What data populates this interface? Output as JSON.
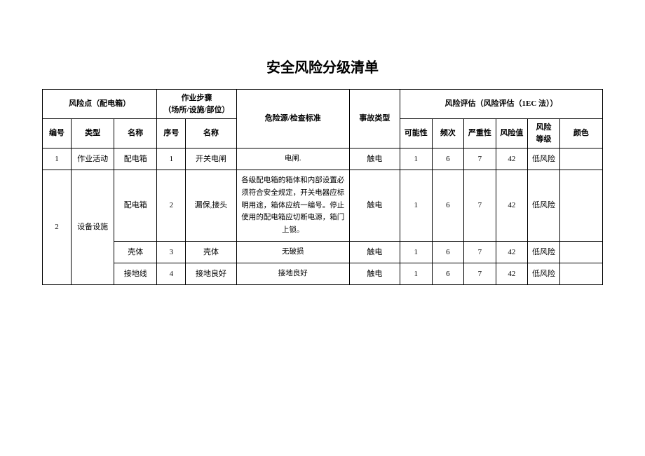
{
  "title": "安全风险分级清单",
  "header_group": {
    "risk_point": "风险点（配电箱）",
    "step_group": "作业步骤\n（场所/设施/部位）",
    "hazard": "危险源/检查标准",
    "accident": "事故类型",
    "assessment": "风险评估（风险评估（1EC 法））"
  },
  "sub_headers": {
    "rp_no": "编号",
    "rp_type": "类型",
    "rp_name": "名称",
    "step_no": "序号",
    "step_name": "名称",
    "possibility": "可能性",
    "frequency": "频次",
    "severity": "严重性",
    "risk_value": "风险值",
    "risk_level": "风险\n等级",
    "color": "颜色"
  },
  "rows": [
    {
      "rp_no": "1",
      "rp_type": "作业活动",
      "rp_name": "配电箱",
      "step_no": "1",
      "step_name": "开关电闸",
      "hazard": "电闸.",
      "accident": "触电",
      "possibility": "1",
      "frequency": "6",
      "severity": "7",
      "risk_value": "42",
      "risk_level": "低风险",
      "color": ""
    },
    {
      "rp_no": "2",
      "rp_type": "设备设施",
      "rp_name": "配电箱",
      "step_no": "2",
      "step_name": "漏保,接头",
      "hazard": "各级配电箱的箱体和内部设置必须符合安全规定，开关电器应标明用途，箱体应统一编号。停止使用的配电箱应切断电源，箱门上锁。",
      "accident": "触电",
      "possibility": "1",
      "frequency": "6",
      "severity": "7",
      "risk_value": "42",
      "risk_level": "低风险",
      "color": ""
    },
    {
      "rp_no": "",
      "rp_type": "",
      "rp_name": "壳体",
      "step_no": "3",
      "step_name": "壳体",
      "hazard": "无破损",
      "accident": "触电",
      "possibility": "1",
      "frequency": "6",
      "severity": "7",
      "risk_value": "42",
      "risk_level": "低风险",
      "color": ""
    },
    {
      "rp_no": "",
      "rp_type": "",
      "rp_name": "接地线",
      "step_no": "4",
      "step_name": "接地良好",
      "hazard": "接地良好",
      "accident": "触电",
      "possibility": "1",
      "frequency": "6",
      "severity": "7",
      "risk_value": "42",
      "risk_level": "低风险",
      "color": ""
    }
  ]
}
